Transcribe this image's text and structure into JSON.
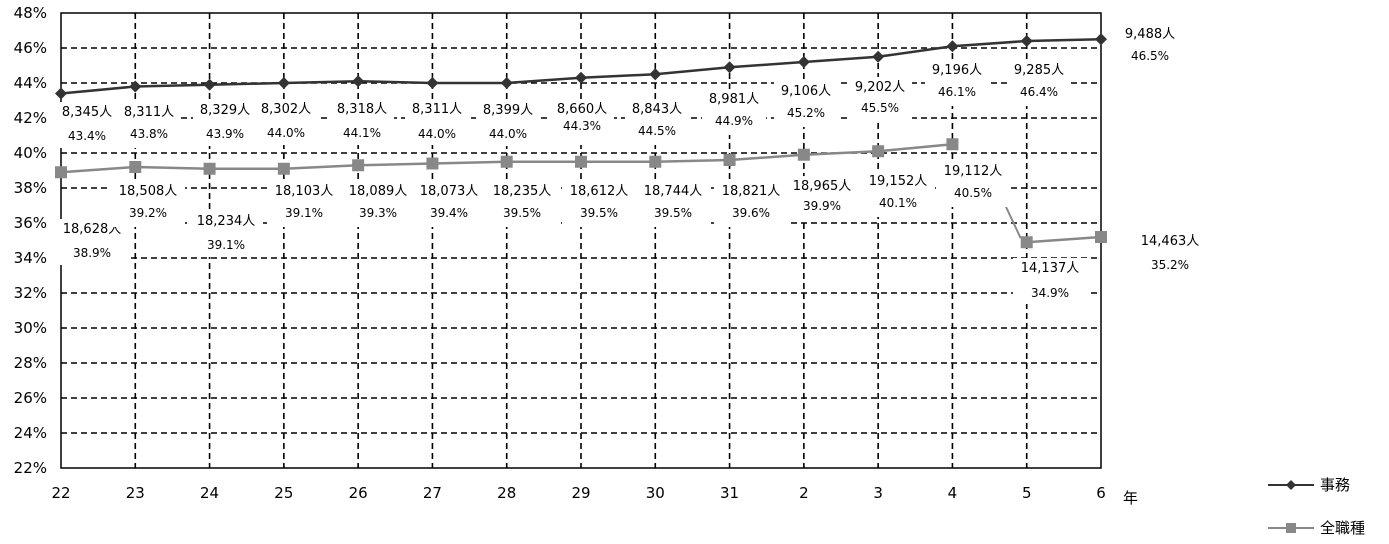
{
  "chart_data": {
    "type": "line",
    "xlabel": "年",
    "ylim": [
      22,
      48
    ],
    "yticks": [
      "22%",
      "24%",
      "26%",
      "28%",
      "30%",
      "32%",
      "34%",
      "36%",
      "38%",
      "40%",
      "42%",
      "44%",
      "46%",
      "48%"
    ],
    "categories": [
      "22",
      "23",
      "24",
      "25",
      "26",
      "27",
      "28",
      "29",
      "30",
      "31",
      "2",
      "3",
      "4",
      "5",
      "6"
    ],
    "grid": true,
    "legend_position": "bottom-right",
    "series": [
      {
        "name": "事務",
        "color": "#333333",
        "marker": "diamond",
        "values": [
          43.4,
          43.8,
          43.9,
          44.0,
          44.1,
          44.0,
          44.0,
          44.3,
          44.5,
          44.9,
          45.2,
          45.5,
          46.1,
          46.4,
          46.5
        ],
        "pct_labels": [
          "43.4%",
          "43.8%",
          "43.9%",
          "44.0%",
          "44.1%",
          "44.0%",
          "44.0%",
          "44.3%",
          "44.5%",
          "44.9%",
          "45.2%",
          "45.5%",
          "46.1%",
          "46.4%",
          "46.5%"
        ],
        "count_labels": [
          "8,345人",
          "8,311人",
          "8,329人",
          "8,302人",
          "8,318人",
          "8,311人",
          "8,399人",
          "8,660人",
          "8,843人",
          "8,981人",
          "9,106人",
          "9,202人",
          "9,196人",
          "9,285人",
          "9,488人"
        ]
      },
      {
        "name": "全職種",
        "color": "#888888",
        "marker": "square",
        "values": [
          38.9,
          39.2,
          39.1,
          39.1,
          39.3,
          39.4,
          39.5,
          39.5,
          39.5,
          39.6,
          39.9,
          40.1,
          40.5,
          34.9,
          35.2
        ],
        "pct_labels": [
          "38.9%",
          "39.2%",
          "39.1%",
          "39.1%",
          "39.3%",
          "39.4%",
          "39.5%",
          "39.5%",
          "39.5%",
          "39.6%",
          "39.9%",
          "40.1%",
          "40.5%",
          "34.9%",
          "35.2%"
        ],
        "count_labels": [
          "18,628人",
          "18,508人",
          "18,234人",
          "18,103人",
          "18,089人",
          "18,073人",
          "18,235人",
          "18,612人",
          "18,744人",
          "18,821人",
          "18,965人",
          "19,152人",
          "19,112人",
          "14,137人",
          "14,463人"
        ],
        "gap_after_index": 12
      }
    ]
  }
}
